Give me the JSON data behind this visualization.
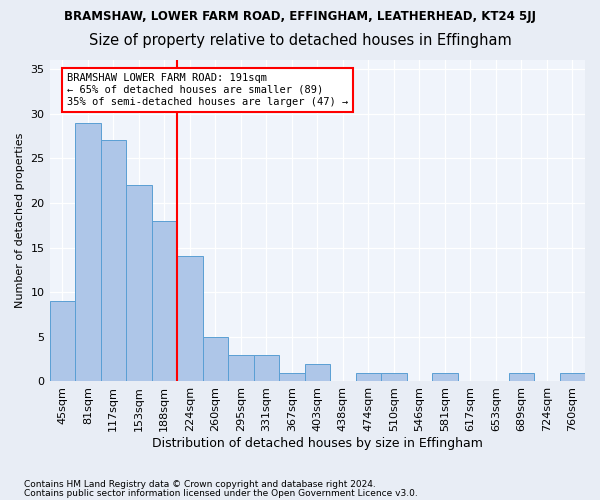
{
  "title": "BRAMSHAW, LOWER FARM ROAD, EFFINGHAM, LEATHERHEAD, KT24 5JJ",
  "subtitle": "Size of property relative to detached houses in Effingham",
  "xlabel": "Distribution of detached houses by size in Effingham",
  "ylabel": "Number of detached properties",
  "bar_values": [
    9,
    29,
    27,
    22,
    18,
    14,
    5,
    3,
    3,
    1,
    2,
    0,
    1,
    1,
    0,
    1,
    0,
    0,
    1,
    0,
    1
  ],
  "bar_labels": [
    "45sqm",
    "81sqm",
    "117sqm",
    "153sqm",
    "188sqm",
    "224sqm",
    "260sqm",
    "295sqm",
    "331sqm",
    "367sqm",
    "403sqm",
    "438sqm",
    "474sqm",
    "510sqm",
    "546sqm",
    "581sqm",
    "617sqm",
    "653sqm",
    "689sqm",
    "724sqm",
    "760sqm"
  ],
  "bar_color": "#aec6e8",
  "bar_edge_color": "#5a9fd4",
  "annotation_text_line1": "BRAMSHAW LOWER FARM ROAD: 191sqm",
  "annotation_text_line2": "← 65% of detached houses are smaller (89)",
  "annotation_text_line3": "35% of semi-detached houses are larger (47) →",
  "annotation_box_color": "white",
  "annotation_box_edge_color": "red",
  "vline_color": "red",
  "ylim": [
    0,
    36
  ],
  "yticks": [
    0,
    5,
    10,
    15,
    20,
    25,
    30,
    35
  ],
  "footer_line1": "Contains HM Land Registry data © Crown copyright and database right 2024.",
  "footer_line2": "Contains public sector information licensed under the Open Government Licence v3.0.",
  "bg_color": "#e8edf5",
  "plot_bg_color": "#f0f4fb",
  "title_fontsize": 8.5,
  "subtitle_fontsize": 10.5
}
